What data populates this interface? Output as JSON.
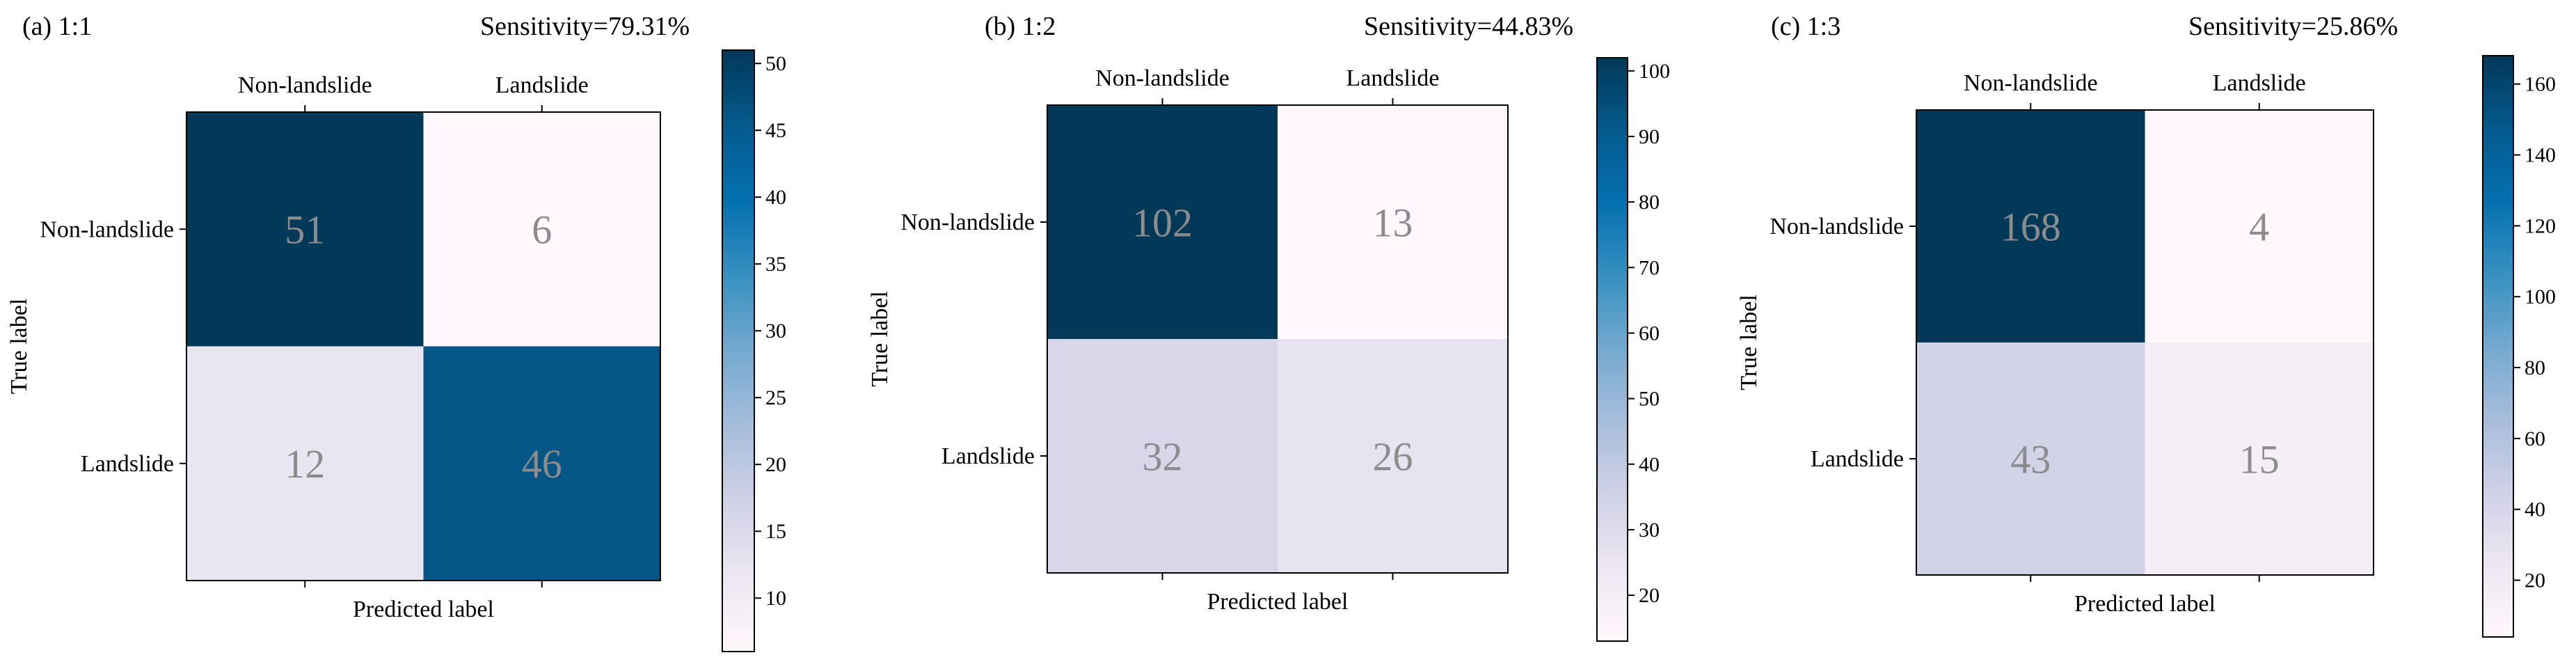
{
  "chart_data": [
    {
      "type": "heatmap",
      "panel_label": "(a) 1:1",
      "title": "Sensitivity=79.31%",
      "xlabel": "Predicted label",
      "ylabel": "True label",
      "x_categories": [
        "Non-landslide",
        "Landslide"
      ],
      "y_categories": [
        "Non-landslide",
        "Landslide"
      ],
      "matrix": [
        [
          51,
          6
        ],
        [
          12,
          46
        ]
      ],
      "colorbar": {
        "range": [
          6,
          51
        ],
        "ticks": [
          10,
          15,
          20,
          25,
          30,
          35,
          40,
          45,
          50
        ]
      }
    },
    {
      "type": "heatmap",
      "panel_label": "(b) 1:2",
      "title": "Sensitivity=44.83%",
      "xlabel": "Predicted label",
      "ylabel": "True label",
      "x_categories": [
        "Non-landslide",
        "Landslide"
      ],
      "y_categories": [
        "Non-landslide",
        "Landslide"
      ],
      "matrix": [
        [
          102,
          13
        ],
        [
          32,
          26
        ]
      ],
      "colorbar": {
        "range": [
          13,
          102
        ],
        "ticks": [
          20,
          30,
          40,
          50,
          60,
          70,
          80,
          90,
          100
        ]
      }
    },
    {
      "type": "heatmap",
      "panel_label": "(c) 1:3",
      "title": "Sensitivity=25.86%",
      "xlabel": "Predicted label",
      "ylabel": "True label",
      "x_categories": [
        "Non-landslide",
        "Landslide"
      ],
      "y_categories": [
        "Non-landslide",
        "Landslide"
      ],
      "matrix": [
        [
          168,
          4
        ],
        [
          43,
          15
        ]
      ],
      "colorbar": {
        "range": [
          4,
          168
        ],
        "ticks": [
          20,
          40,
          60,
          80,
          100,
          120,
          140,
          160
        ]
      }
    }
  ],
  "colormap": {
    "name": "PuBu",
    "stops": [
      "#fff7fb",
      "#ece7f2",
      "#d0d1e6",
      "#a6bddb",
      "#74a9cf",
      "#3690c0",
      "#0570b0",
      "#045a8d",
      "#023858"
    ]
  },
  "cell_text_color": "#8c8c8c"
}
